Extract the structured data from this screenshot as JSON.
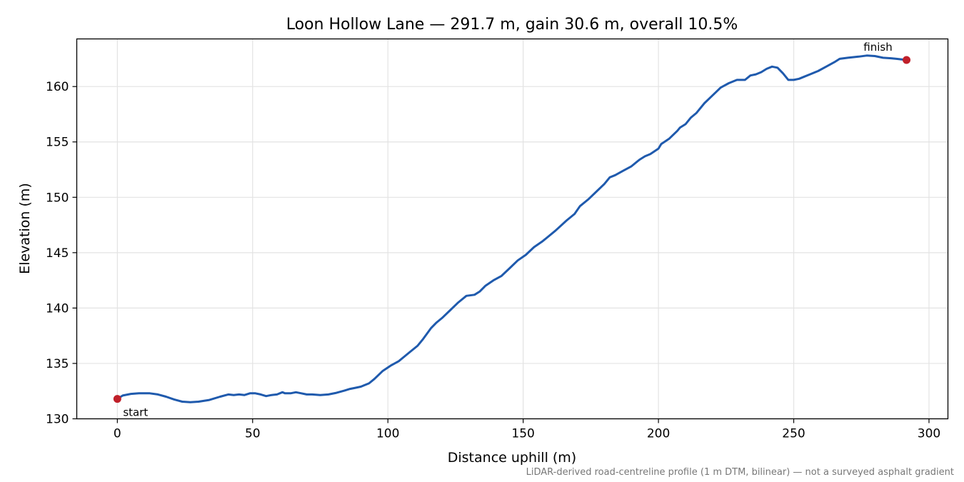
{
  "chart_data": {
    "type": "line",
    "title": "Loon Hollow Lane — 291.7 m, gain 30.6 m, overall 10.5%",
    "xlabel": "Distance uphill (m)",
    "ylabel": "Elevation (m)",
    "xlim": [
      -15,
      307
    ],
    "ylim": [
      130,
      164.3
    ],
    "xticks": [
      0,
      50,
      100,
      150,
      200,
      250,
      300
    ],
    "yticks": [
      130,
      135,
      140,
      145,
      150,
      155,
      160
    ],
    "grid": true,
    "series": [
      {
        "color": "#1f5aad",
        "x": [
          0,
          2,
          5,
          8,
          12,
          15,
          18,
          21,
          24,
          27,
          30,
          34,
          38,
          41,
          43,
          45,
          47,
          49,
          51,
          53,
          55,
          57,
          59,
          61,
          62,
          64,
          66,
          68,
          70,
          72,
          75,
          78,
          81,
          84,
          86,
          88,
          90,
          93,
          95,
          98,
          101,
          104,
          106,
          108,
          111,
          113,
          116,
          118,
          120,
          123,
          126,
          129,
          132,
          134,
          136,
          139,
          142,
          145,
          148,
          151,
          154,
          157,
          159,
          162,
          166,
          169,
          171,
          174,
          177,
          180,
          182,
          184,
          187,
          190,
          193,
          195,
          197,
          200,
          201,
          204,
          207,
          208,
          210,
          212,
          214,
          217,
          220,
          223,
          226,
          229,
          232,
          234,
          236,
          238,
          240,
          242,
          244,
          246,
          248,
          250,
          252,
          254,
          256,
          259,
          262,
          265,
          267,
          270,
          274,
          277,
          280,
          283,
          286,
          288,
          290,
          291.7
        ],
        "values": [
          131.8,
          132.1,
          132.25,
          132.3,
          132.3,
          132.2,
          132.0,
          131.75,
          131.55,
          131.5,
          131.55,
          131.7,
          132.0,
          132.2,
          132.15,
          132.2,
          132.15,
          132.3,
          132.3,
          132.2,
          132.05,
          132.15,
          132.2,
          132.4,
          132.3,
          132.3,
          132.4,
          132.3,
          132.2,
          132.2,
          132.15,
          132.2,
          132.35,
          132.55,
          132.7,
          132.8,
          132.9,
          133.2,
          133.6,
          134.3,
          134.8,
          135.2,
          135.6,
          136.0,
          136.6,
          137.2,
          138.2,
          138.7,
          139.1,
          139.8,
          140.5,
          141.1,
          141.2,
          141.5,
          142.0,
          142.5,
          142.9,
          143.6,
          144.3,
          144.8,
          145.5,
          146.0,
          146.4,
          147.0,
          147.9,
          148.5,
          149.2,
          149.8,
          150.5,
          151.2,
          151.8,
          152.0,
          152.4,
          152.8,
          153.4,
          153.7,
          153.9,
          154.4,
          154.8,
          155.3,
          156.0,
          156.3,
          156.6,
          157.2,
          157.6,
          158.5,
          159.2,
          159.9,
          160.3,
          160.6,
          160.6,
          161.0,
          161.1,
          161.3,
          161.6,
          161.8,
          161.7,
          161.2,
          160.6,
          160.6,
          160.7,
          160.9,
          161.1,
          161.4,
          161.8,
          162.2,
          162.5,
          162.6,
          162.7,
          162.8,
          162.75,
          162.6,
          162.55,
          162.5,
          162.45,
          162.4
        ]
      }
    ],
    "annotations": {
      "start_label": "start",
      "finish_label": "finish",
      "marker_color": "#c0202a"
    },
    "footnote": "LiDAR-derived road-centreline profile (1 m DTM, bilinear) — not a surveyed asphalt gradient"
  }
}
